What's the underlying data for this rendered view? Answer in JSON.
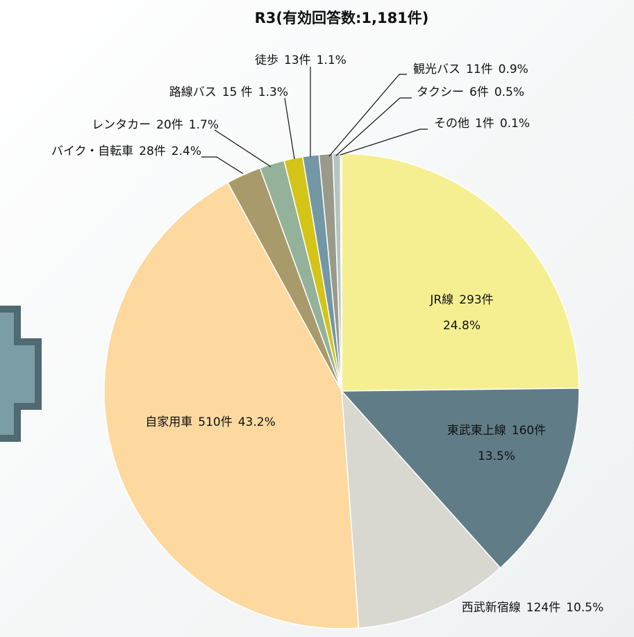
{
  "chart_data": {
    "type": "pie",
    "title": "R3(有効回答数:1,181件)",
    "categories": [
      "JR線",
      "東武東上線",
      "西武新宿線",
      "自家用車",
      "バイク・自転車",
      "レンタカー",
      "路線バス",
      "徒歩",
      "観光バス",
      "タクシー",
      "その他"
    ],
    "values": [
      293,
      160,
      124,
      510,
      28,
      20,
      15,
      13,
      11,
      6,
      1
    ],
    "value_labels": [
      "293件",
      "160件",
      "124件",
      "510件",
      "28件",
      "20件",
      "15 件",
      "13件",
      "11件",
      "6件",
      "1件"
    ],
    "percent_labels": [
      "24.8%",
      "13.5%",
      "10.5%",
      "43.2%",
      "2.4%",
      "1.7%",
      "1.3%",
      "1.1%",
      "0.9%",
      "0.5%",
      "0.1%"
    ],
    "colors": [
      "#f5ef92",
      "#607d87",
      "#d9d8d0",
      "#fdd9a0",
      "#a89a6a",
      "#94b29a",
      "#d4c418",
      "#7397a5",
      "#9a9a8a",
      "#b6c4c0",
      "#d8e0dc"
    ]
  }
}
